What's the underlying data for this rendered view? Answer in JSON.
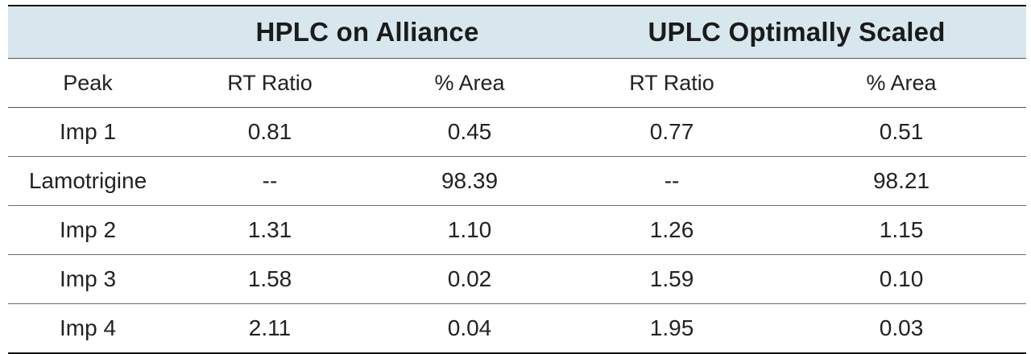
{
  "table": {
    "groups": [
      "",
      "HPLC on Alliance",
      "UPLC Optimally Scaled"
    ],
    "headers": [
      "Peak",
      "RT Ratio",
      "% Area",
      "RT Ratio",
      "% Area"
    ],
    "rows": [
      [
        "Imp 1",
        "0.81",
        "0.45",
        "0.77",
        "0.51"
      ],
      [
        "Lamotrigine",
        "--",
        "98.39",
        "--",
        "98.21"
      ],
      [
        "Imp 2",
        "1.31",
        "1.10",
        "1.26",
        "1.15"
      ],
      [
        "Imp 3",
        "1.58",
        "0.02",
        "1.59",
        "0.10"
      ],
      [
        "Imp 4",
        "2.11",
        "0.04",
        "1.95",
        "0.03"
      ]
    ]
  },
  "colors": {
    "group_header_bg": "#d8e7ee",
    "text": "#222222",
    "rule": "#111111"
  }
}
